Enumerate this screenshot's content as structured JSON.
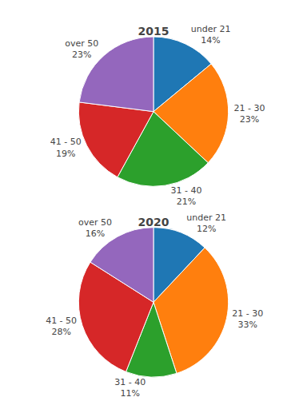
{
  "chart_data": [
    {
      "type": "pie",
      "title": "2015",
      "categories": [
        "under 21",
        "21 - 30",
        "31 - 40",
        "41 - 50",
        "over 50"
      ],
      "values": [
        14,
        23,
        21,
        19,
        23
      ],
      "value_labels": [
        "14%",
        "23%",
        "21%",
        "19%",
        "23%"
      ],
      "data_labels": true
    },
    {
      "type": "pie",
      "title": "2020",
      "categories": [
        "under 21",
        "21 - 30",
        "31 - 40",
        "41 - 50",
        "over 50"
      ],
      "values": [
        12,
        33,
        11,
        28,
        16
      ],
      "value_labels": [
        "12%",
        "33%",
        "11%",
        "28%",
        "16%"
      ],
      "data_labels": true
    }
  ]
}
